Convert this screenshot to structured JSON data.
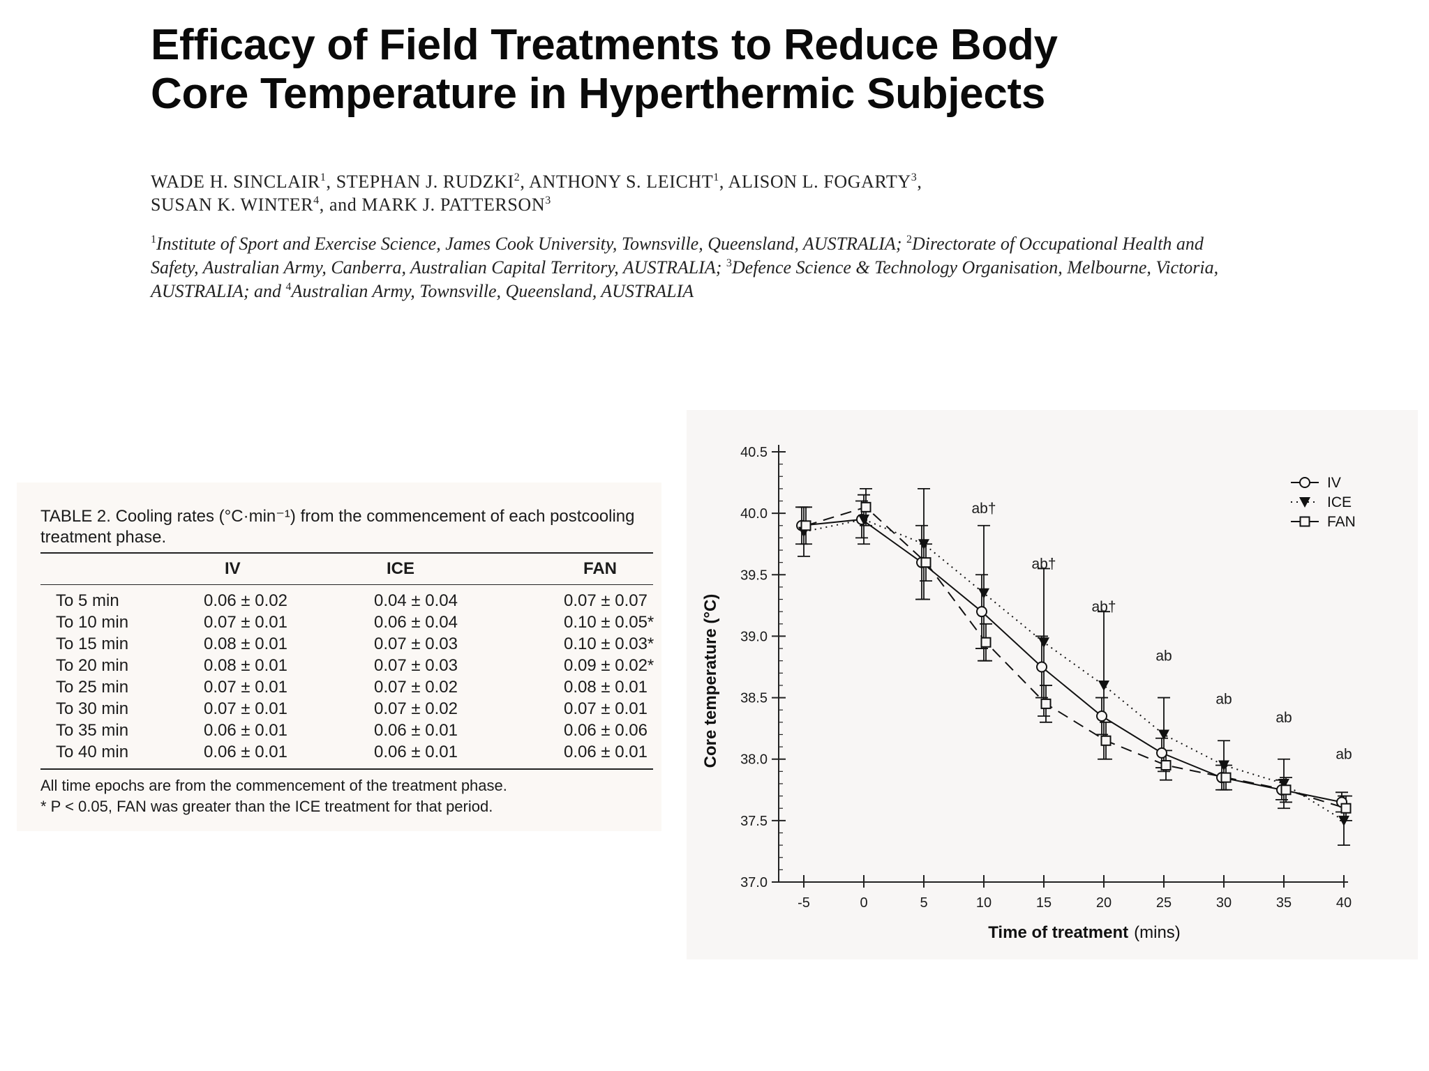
{
  "paper": {
    "title_line1": "Efficacy of Field Treatments to Reduce Body",
    "title_line2": "Core Temperature in Hyperthermic Subjects",
    "authors": [
      {
        "name": "WADE H. SINCLAIR",
        "sup": "1",
        "sep": ", "
      },
      {
        "name": "STEPHAN J. RUDZKI",
        "sup": "2",
        "sep": ", "
      },
      {
        "name": "ANTHONY S. LEICHT",
        "sup": "1",
        "sep": ", "
      },
      {
        "name": "ALISON L. FOGARTY",
        "sup": "3",
        "sep": ","
      },
      {
        "name": "SUSAN K. WINTER",
        "sup": "4",
        "sep": ", and "
      },
      {
        "name": "MARK J. PATTERSON",
        "sup": "3",
        "sep": ""
      }
    ],
    "affiliations": [
      {
        "sup": "1",
        "text": "Institute of Sport and Exercise Science, James Cook University, Townsville, Queensland, AUSTRALIA; "
      },
      {
        "sup": "2",
        "text": "Directorate of Occupational Health and Safety, Australian Army, Canberra, Australian Capital Territory, AUSTRALIA; "
      },
      {
        "sup": "3",
        "text": "Defence Science & Technology Organisation, Melbourne, Victoria, AUSTRALIA; and "
      },
      {
        "sup": "4",
        "text": "Australian Army, Townsville, Queensland, AUSTRALIA"
      }
    ]
  },
  "table": {
    "caption_line1": "TABLE 2. Cooling rates (°C·min⁻¹) from the commencement of each postcooling",
    "caption_line2": "treatment phase.",
    "headers": [
      "IV",
      "ICE",
      "FAN"
    ],
    "rows": [
      {
        "label": "To 5 min",
        "iv": "0.06 ± 0.02",
        "ice": "0.04 ± 0.04",
        "fan": "0.07 ± 0.07"
      },
      {
        "label": "To 10 min",
        "iv": "0.07 ± 0.01",
        "ice": "0.06 ± 0.04",
        "fan": "0.10 ± 0.05*"
      },
      {
        "label": "To 15 min",
        "iv": "0.08 ± 0.01",
        "ice": "0.07 ± 0.03",
        "fan": "0.10 ± 0.03*"
      },
      {
        "label": "To 20 min",
        "iv": "0.08 ± 0.01",
        "ice": "0.07 ± 0.03",
        "fan": "0.09 ± 0.02*"
      },
      {
        "label": "To 25 min",
        "iv": "0.07 ± 0.01",
        "ice": "0.07 ± 0.02",
        "fan": "0.08 ± 0.01"
      },
      {
        "label": "To 30 min",
        "iv": "0.07 ± 0.01",
        "ice": "0.07 ± 0.02",
        "fan": "0.07 ± 0.01"
      },
      {
        "label": "To 35 min",
        "iv": "0.06 ± 0.01",
        "ice": "0.06 ± 0.01",
        "fan": "0.06 ± 0.06"
      },
      {
        "label": "To 40 min",
        "iv": "0.06 ± 0.01",
        "ice": "0.06 ± 0.01",
        "fan": "0.06 ± 0.01"
      }
    ],
    "footnote1": "All time epochs are from the commencement of the treatment phase.",
    "footnote2": "* P < 0.05, FAN was greater than the ICE treatment for that period."
  },
  "chart_data": {
    "type": "line",
    "xlabel": "Time of treatment",
    "xlabel_unit": "(mins)",
    "ylabel": "Core temperature (°C)",
    "x": [
      -5,
      0,
      5,
      10,
      15,
      20,
      25,
      30,
      35,
      40
    ],
    "xlim": [
      -5,
      40
    ],
    "ylim": [
      37.0,
      40.5
    ],
    "yticks": [
      "37.0",
      "37.5",
      "38.0",
      "38.5",
      "39.0",
      "39.5",
      "40.0",
      "40.5"
    ],
    "xticks": [
      "-5",
      "0",
      "5",
      "10",
      "15",
      "20",
      "25",
      "30",
      "35",
      "40"
    ],
    "series": [
      {
        "name": "IV",
        "marker": "circle",
        "line": "solid",
        "values": [
          39.9,
          39.95,
          39.6,
          39.2,
          38.75,
          38.35,
          38.05,
          37.85,
          37.75,
          37.65
        ],
        "err": [
          0.15,
          0.15,
          0.3,
          0.3,
          0.25,
          0.15,
          0.12,
          0.1,
          0.08,
          0.08
        ]
      },
      {
        "name": "ICE",
        "marker": "triangle-down",
        "line": "dotted",
        "values": [
          39.85,
          39.95,
          39.75,
          39.35,
          38.95,
          38.6,
          38.2,
          37.95,
          37.8,
          37.5
        ],
        "err": [
          0.2,
          0.2,
          0.45,
          0.55,
          0.6,
          0.6,
          0.3,
          0.2,
          0.2,
          0.2
        ]
      },
      {
        "name": "FAN",
        "marker": "square",
        "line": "dashed",
        "values": [
          39.9,
          40.05,
          39.6,
          38.95,
          38.45,
          38.15,
          37.95,
          37.85,
          37.75,
          37.6
        ],
        "err": [
          0.15,
          0.15,
          0.15,
          0.15,
          0.15,
          0.15,
          0.12,
          0.1,
          0.1,
          0.1
        ]
      }
    ],
    "annotations": [
      {
        "x": 10,
        "y": 40.0,
        "text": "ab†"
      },
      {
        "x": 15,
        "y": 39.55,
        "text": "ab†"
      },
      {
        "x": 20,
        "y": 39.2,
        "text": "ab†"
      },
      {
        "x": 25,
        "y": 38.8,
        "text": "ab"
      },
      {
        "x": 30,
        "y": 38.45,
        "text": "ab"
      },
      {
        "x": 35,
        "y": 38.3,
        "text": "ab"
      },
      {
        "x": 40,
        "y": 38.0,
        "text": "ab"
      }
    ],
    "legend_position": "top-right"
  }
}
